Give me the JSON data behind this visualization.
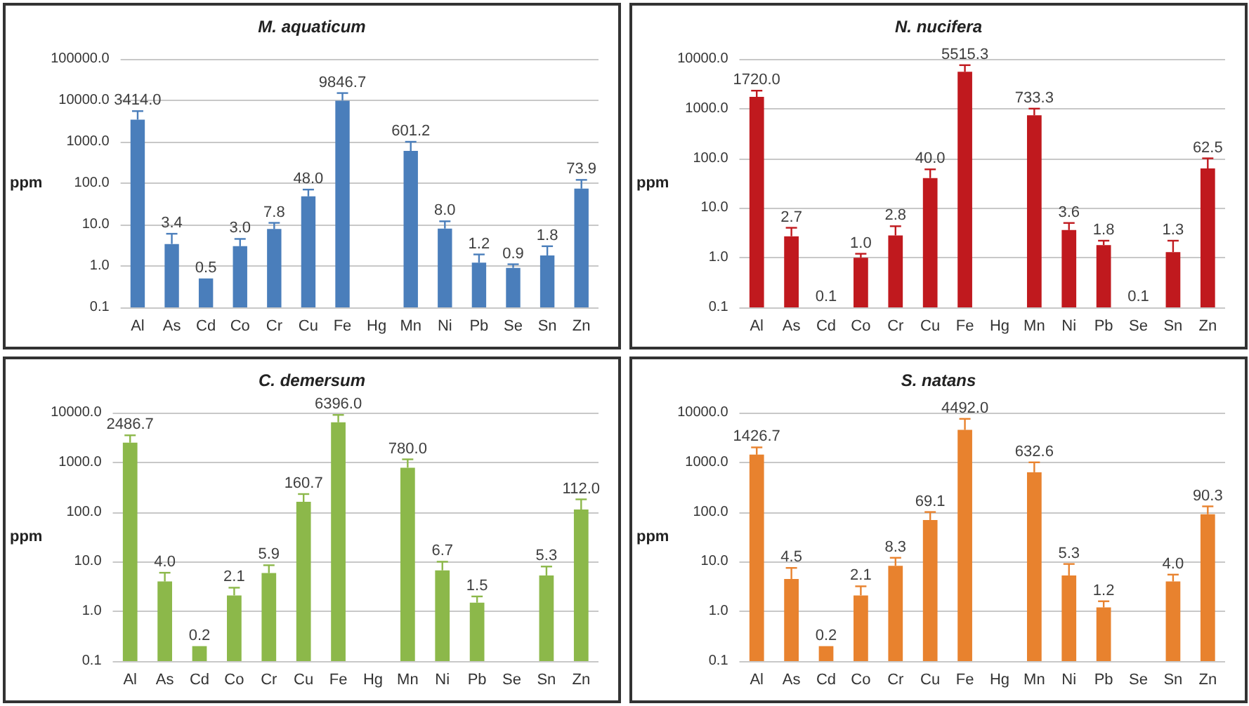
{
  "chart_data": [
    {
      "type": "bar",
      "title": "M. aquaticum",
      "ylabel": "ppm",
      "log": true,
      "grid": "y",
      "color": "#4a7ebb",
      "categories": [
        "Al",
        "As",
        "Cd",
        "Co",
        "Cr",
        "Cu",
        "Fe",
        "Hg",
        "Mn",
        "Ni",
        "Pb",
        "Se",
        "Sn",
        "Zn"
      ],
      "values": [
        3414.0,
        3.4,
        0.5,
        3.0,
        7.8,
        48.0,
        9846.7,
        null,
        601.2,
        8.0,
        1.2,
        0.9,
        1.8,
        73.9
      ],
      "value_labels": [
        "3414.0",
        "3.4",
        "0.5",
        "3.0",
        "7.8",
        "48.0",
        "9846.7",
        null,
        "601.2",
        "8.0",
        "1.2",
        "0.9",
        "1.8",
        "73.9"
      ],
      "errors": [
        [
          3414.0,
          5500
        ],
        [
          3.4,
          6
        ],
        null,
        [
          3.0,
          4.5
        ],
        [
          7.8,
          11
        ],
        [
          48.0,
          70
        ],
        [
          9846.7,
          15000
        ],
        null,
        [
          601.2,
          1000
        ],
        [
          8.0,
          12
        ],
        [
          1.2,
          1.9
        ],
        [
          0.9,
          1.1
        ],
        [
          1.8,
          3
        ],
        [
          73.9,
          120
        ]
      ],
      "ylim": [
        0.1,
        100000
      ],
      "yticks": [
        {
          "value": 0.1,
          "label": "0.1"
        },
        {
          "value": 1,
          "label": "1.0"
        },
        {
          "value": 10,
          "label": "10.0"
        },
        {
          "value": 100,
          "label": "100.0"
        },
        {
          "value": 1000,
          "label": "1000.0"
        },
        {
          "value": 10000,
          "label": "10000.0"
        },
        {
          "value": 100000,
          "label": "100000.0"
        }
      ]
    },
    {
      "type": "bar",
      "title": "N. nucifera",
      "ylabel": "ppm",
      "log": true,
      "grid": "y",
      "color": "#c0191e",
      "categories": [
        "Al",
        "As",
        "Cd",
        "Co",
        "Cr",
        "Cu",
        "Fe",
        "Hg",
        "Mn",
        "Ni",
        "Pb",
        "Se",
        "Sn",
        "Zn"
      ],
      "values": [
        1720.0,
        2.7,
        0.1,
        1.0,
        2.8,
        40.0,
        5515.3,
        null,
        733.3,
        3.6,
        1.8,
        0.1,
        1.3,
        62.5
      ],
      "value_labels": [
        "1720.0",
        "2.7",
        "0.1",
        "1.0",
        "2.8",
        "40.0",
        "5515.3",
        null,
        "733.3",
        "3.6",
        "1.8",
        "0.1",
        "1.3",
        "62.5"
      ],
      "errors": [
        [
          1720.0,
          2300
        ],
        [
          2.7,
          4
        ],
        null,
        [
          1.0,
          1.2
        ],
        [
          2.8,
          4.3
        ],
        [
          40.0,
          60
        ],
        [
          5515.3,
          7500
        ],
        null,
        [
          733.3,
          1000
        ],
        [
          3.6,
          5
        ],
        [
          1.8,
          2.2
        ],
        null,
        [
          1.3,
          2.2
        ],
        [
          62.5,
          100
        ]
      ],
      "ylim": [
        0.1,
        10000
      ],
      "yticks": [
        {
          "value": 0.1,
          "label": "0.1"
        },
        {
          "value": 1,
          "label": "1.0"
        },
        {
          "value": 10,
          "label": "10.0"
        },
        {
          "value": 100,
          "label": "100.0"
        },
        {
          "value": 1000,
          "label": "1000.0"
        },
        {
          "value": 10000,
          "label": "10000.0"
        }
      ]
    },
    {
      "type": "bar",
      "title": "C. demersum",
      "ylabel": "ppm",
      "log": true,
      "grid": "y",
      "color": "#8cb84a",
      "categories": [
        "Al",
        "As",
        "Cd",
        "Co",
        "Cr",
        "Cu",
        "Fe",
        "Hg",
        "Mn",
        "Ni",
        "Pb",
        "Se",
        "Sn",
        "Zn"
      ],
      "values": [
        2486.7,
        4.0,
        0.2,
        2.1,
        5.9,
        160.7,
        6396.0,
        null,
        780.0,
        6.7,
        1.5,
        null,
        5.3,
        112.0
      ],
      "value_labels": [
        "2486.7",
        "4.0",
        "0.2",
        "2.1",
        "5.9",
        "160.7",
        "6396.0",
        null,
        "780.0",
        "6.7",
        "1.5",
        null,
        "5.3",
        "112.0"
      ],
      "errors": [
        [
          2486.7,
          3500
        ],
        [
          4.0,
          6
        ],
        null,
        [
          2.1,
          3
        ],
        [
          5.9,
          8.5
        ],
        [
          160.7,
          230
        ],
        [
          6396.0,
          9000
        ],
        null,
        [
          780.0,
          1150
        ],
        [
          6.7,
          10
        ],
        [
          1.5,
          2
        ],
        null,
        [
          5.3,
          8
        ],
        [
          112.0,
          180
        ]
      ],
      "ylim": [
        0.1,
        10000
      ],
      "yticks": [
        {
          "value": 0.1,
          "label": "0.1"
        },
        {
          "value": 1,
          "label": "1.0"
        },
        {
          "value": 10,
          "label": "10.0"
        },
        {
          "value": 100,
          "label": "100.0"
        },
        {
          "value": 1000,
          "label": "1000.0"
        },
        {
          "value": 10000,
          "label": "10000.0"
        }
      ]
    },
    {
      "type": "bar",
      "title": "S. natans",
      "ylabel": "ppm",
      "log": true,
      "grid": "y",
      "color": "#e8822e",
      "categories": [
        "Al",
        "As",
        "Cd",
        "Co",
        "Cr",
        "Cu",
        "Fe",
        "Hg",
        "Mn",
        "Ni",
        "Pb",
        "Se",
        "Sn",
        "Zn"
      ],
      "values": [
        1426.7,
        4.5,
        0.2,
        2.1,
        8.3,
        69.1,
        4492.0,
        null,
        632.6,
        5.3,
        1.2,
        null,
        4.0,
        90.3
      ],
      "value_labels": [
        "1426.7",
        "4.5",
        "0.2",
        "2.1",
        "8.3",
        "69.1",
        "4492.0",
        null,
        "632.6",
        "5.3",
        "1.2",
        null,
        "4.0",
        "90.3"
      ],
      "errors": [
        [
          1426.7,
          2000
        ],
        [
          4.5,
          7.5
        ],
        null,
        [
          2.1,
          3.2
        ],
        [
          8.3,
          12
        ],
        [
          69.1,
          100
        ],
        [
          4492.0,
          7500
        ],
        null,
        [
          632.6,
          1000
        ],
        [
          5.3,
          9
        ],
        [
          1.2,
          1.6
        ],
        null,
        [
          4.0,
          5.5
        ],
        [
          90.3,
          130
        ]
      ],
      "ylim": [
        0.1,
        10000
      ],
      "yticks": [
        {
          "value": 0.1,
          "label": "0.1"
        },
        {
          "value": 1,
          "label": "1.0"
        },
        {
          "value": 10,
          "label": "10.0"
        },
        {
          "value": 100,
          "label": "100.0"
        },
        {
          "value": 1000,
          "label": "1000.0"
        },
        {
          "value": 10000,
          "label": "10000.0"
        }
      ]
    }
  ]
}
